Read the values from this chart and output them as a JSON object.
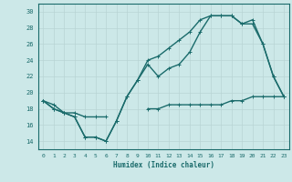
{
  "title": "",
  "xlabel": "Humidex (Indice chaleur)",
  "xlim": [
    -0.5,
    23.5
  ],
  "ylim": [
    13,
    31
  ],
  "yticks": [
    14,
    16,
    18,
    20,
    22,
    24,
    26,
    28,
    30
  ],
  "xticks": [
    0,
    1,
    2,
    3,
    4,
    5,
    6,
    7,
    8,
    9,
    10,
    11,
    12,
    13,
    14,
    15,
    16,
    17,
    18,
    19,
    20,
    21,
    22,
    23
  ],
  "bg_color": "#cce8e8",
  "grid_color": "#b8d4d4",
  "line_color": "#1a6b6b",
  "line1_y": [
    19,
    18,
    17.5,
    17,
    14.5,
    14.5,
    14,
    16.5,
    19.5,
    21.5,
    23.5,
    22,
    23,
    23.5,
    25,
    27.5,
    29.5,
    29.5,
    29.5,
    28.5,
    29,
    26,
    22,
    19.5
  ],
  "line2_y": [
    19,
    18,
    17.5,
    17,
    14.5,
    14.5,
    14,
    16.5,
    19.5,
    21.5,
    24,
    24.5,
    25.5,
    26.5,
    27.5,
    29,
    29.5,
    29.5,
    29.5,
    28.5,
    28.5,
    26,
    22,
    19.5
  ],
  "line3_y": [
    19,
    18.5,
    17.5,
    17.5,
    17,
    17,
    17,
    null,
    null,
    null,
    18,
    18,
    18.5,
    18.5,
    18.5,
    18.5,
    18.5,
    18.5,
    19,
    19,
    19.5,
    19.5,
    19.5,
    19.5
  ],
  "linewidth": 1.0,
  "markersize": 3
}
